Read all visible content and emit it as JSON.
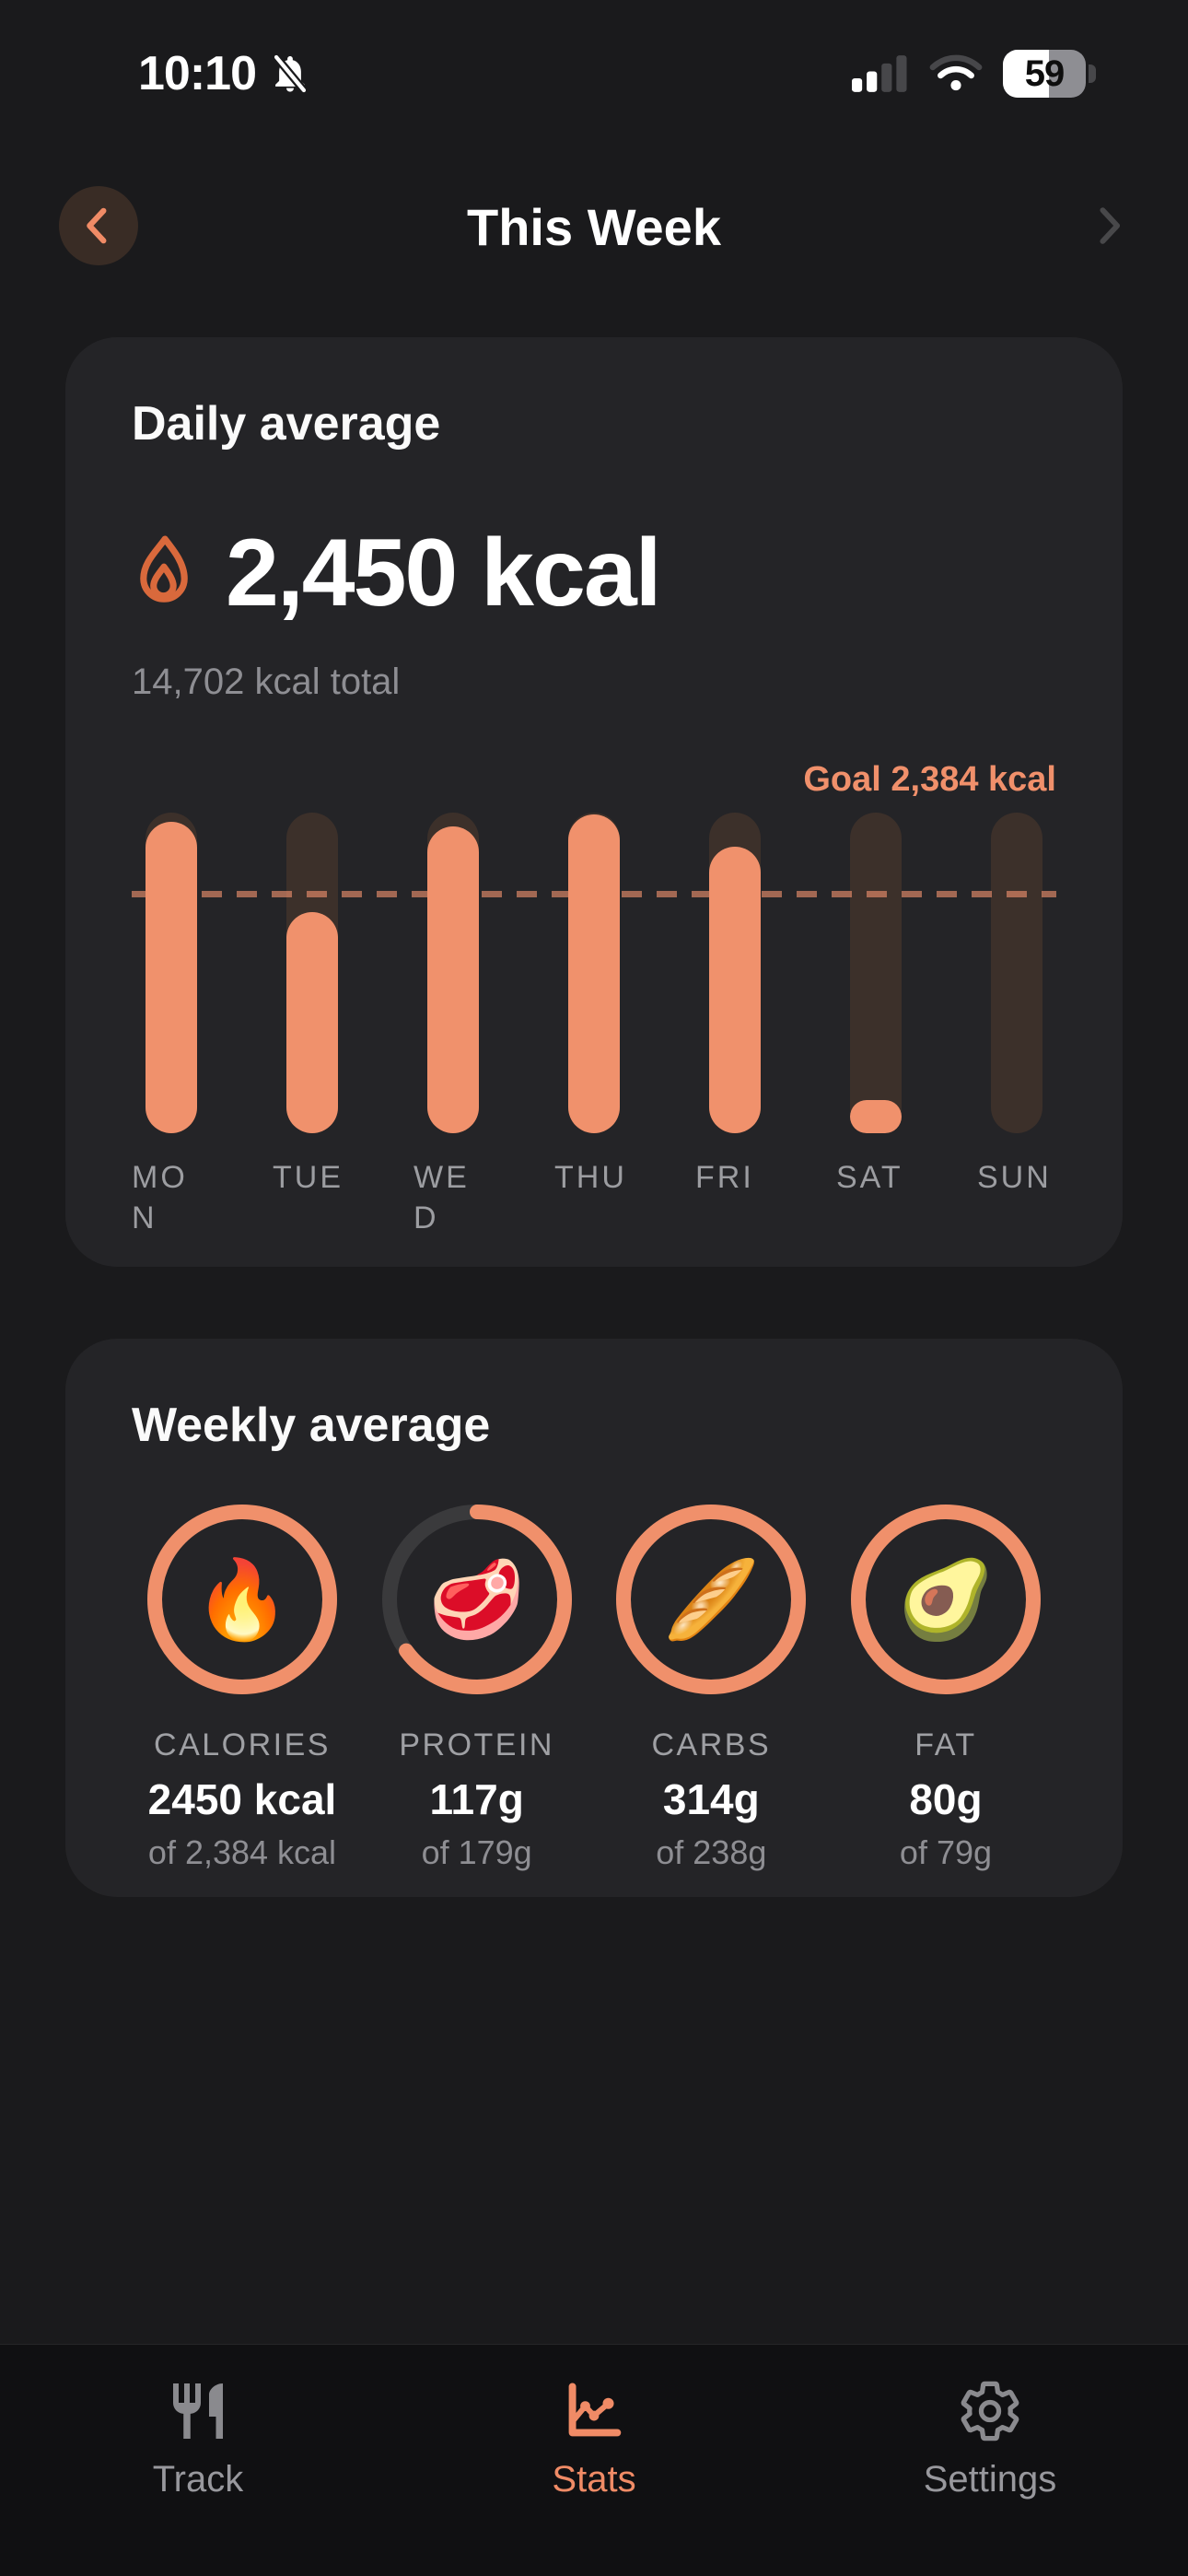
{
  "status_bar": {
    "time": "10:10",
    "battery_percent": "59"
  },
  "header": {
    "title": "This Week"
  },
  "daily_card": {
    "title": "Daily average",
    "average": "2,450 kcal",
    "total": "14,702 kcal total",
    "goal_label": "Goal 2,384 kcal"
  },
  "chart_data": {
    "type": "bar",
    "title": "Daily calories vs goal, this week",
    "categories": [
      "MON",
      "TUE",
      "WED",
      "THU",
      "FRI",
      "SAT",
      "SUN"
    ],
    "values": [
      3100,
      2200,
      3050,
      3170,
      2850,
      330,
      0
    ],
    "unit": "kcal",
    "goal": 2384,
    "ylim": [
      0,
      3190
    ],
    "grid": false,
    "goal_line_style": "dashed horizontal line at goal value",
    "bar_color": "#F0916C",
    "track_color": "#3C302A",
    "goal_line_color": "#A26048"
  },
  "weekly_card": {
    "title": "Weekly average",
    "metrics": [
      {
        "label": "CALORIES",
        "value": "2450 kcal",
        "target": "of 2,384 kcal",
        "emoji": "🔥",
        "progress_percent": 100
      },
      {
        "label": "PROTEIN",
        "value": "117g",
        "target": "of 179g",
        "emoji": "🥩",
        "progress_percent": 65
      },
      {
        "label": "CARBS",
        "value": "314g",
        "target": "of 238g",
        "emoji": "🥖",
        "progress_percent": 100
      },
      {
        "label": "FAT",
        "value": "80g",
        "target": "of 79g",
        "emoji": "🥑",
        "progress_percent": 100
      }
    ],
    "ring_color": "#F0906B",
    "ring_track_color": "#3A3A3C"
  },
  "tab_bar": {
    "items": [
      {
        "label": "Track",
        "icon": "fork-knife-icon",
        "active": false
      },
      {
        "label": "Stats",
        "icon": "line-chart-icon",
        "active": true
      },
      {
        "label": "Settings",
        "icon": "gear-icon",
        "active": false
      }
    ],
    "active_color": "#F08B66",
    "inactive_color": "#8E8E93"
  },
  "colors": {
    "background": "#1A1A1C",
    "card": "#242427",
    "accent": "#F08B66",
    "flame_icon": "#D9693C",
    "secondary_text": "#8E8E93"
  }
}
